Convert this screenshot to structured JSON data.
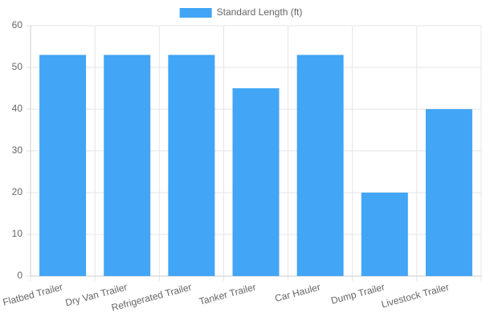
{
  "chart_data": {
    "type": "bar",
    "categories": [
      "Flatbed Trailer",
      "Dry Van Trailer",
      "Refrigerated Trailer",
      "Tanker Trailer",
      "Car Hauler",
      "Dump Trailer",
      "Livestock Trailer"
    ],
    "series": [
      {
        "name": "Standard Length (ft)",
        "color": "#42a5f5",
        "values": [
          53,
          53,
          53,
          45,
          53,
          20,
          40
        ]
      }
    ],
    "ylim": [
      0,
      60
    ],
    "yticks": [
      0,
      10,
      20,
      30,
      40,
      50,
      60
    ],
    "grid": true,
    "legend": "top"
  }
}
